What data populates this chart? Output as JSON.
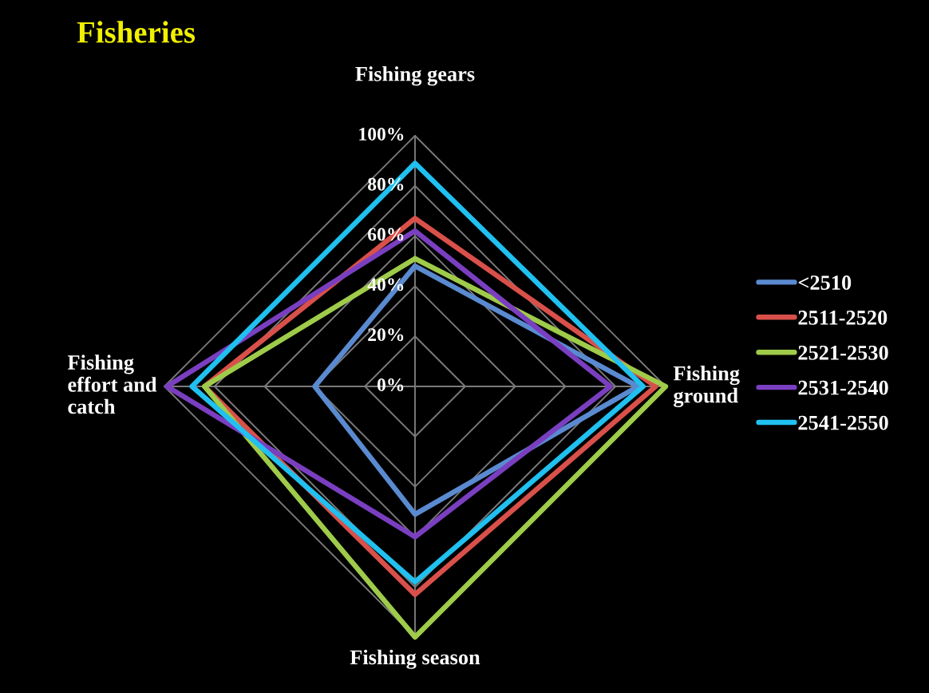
{
  "chart_data": {
    "type": "radar",
    "title": "Fisheries",
    "categories": [
      "Fishing gears",
      "Fishing\nground",
      "Fishing season",
      "Fishing\neffort and\ncatch"
    ],
    "ylim": [
      0,
      100
    ],
    "yticks": [
      {
        "value": 0,
        "label": "0%"
      },
      {
        "value": 20,
        "label": "20%"
      },
      {
        "value": 40,
        "label": "40%"
      },
      {
        "value": 60,
        "label": "60%"
      },
      {
        "value": 80,
        "label": "80%"
      },
      {
        "value": 100,
        "label": "100%"
      }
    ],
    "grid": true,
    "legend": "right",
    "series": [
      {
        "name": "<2510",
        "color": "#5a8ad0",
        "values": [
          48,
          89,
          51,
          40
        ]
      },
      {
        "name": "2511-2520",
        "color": "#d9504a",
        "values": [
          67,
          96,
          83,
          84
        ]
      },
      {
        "name": "2521-2530",
        "color": "#9fcb4a",
        "values": [
          51,
          100,
          100,
          84
        ]
      },
      {
        "name": "2531-2540",
        "color": "#7a3fc0",
        "values": [
          62,
          78,
          60,
          99
        ]
      },
      {
        "name": "2541-2550",
        "color": "#20c0f0",
        "values": [
          89,
          91,
          78,
          89
        ]
      }
    ]
  }
}
